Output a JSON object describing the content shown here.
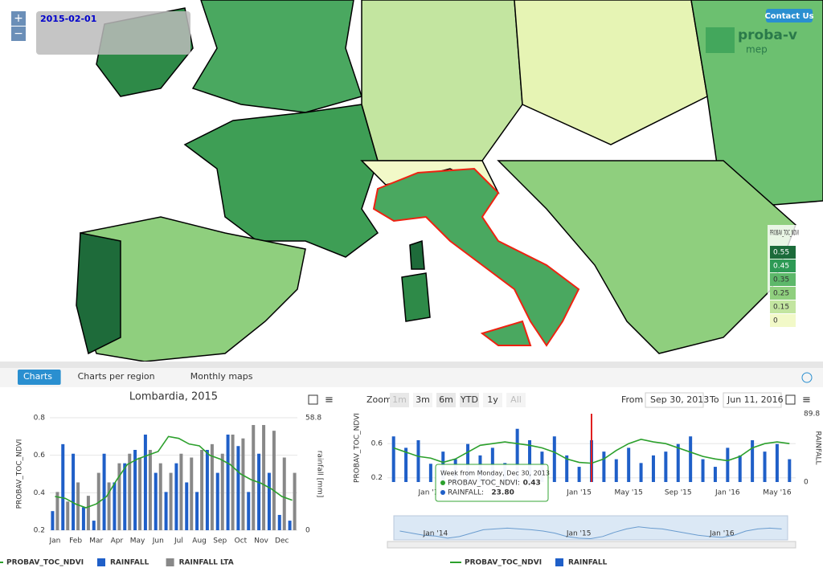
{
  "map": {
    "date": "2015-02-01",
    "zoom_in": "+",
    "zoom_out": "−",
    "contact": "Contact Us",
    "logo": "proba-v",
    "logo_sub": "mep",
    "legend": {
      "title": "PROBAV_TOC_NDVI",
      "values": [
        0.55,
        0.45,
        0.35,
        0.25,
        0.15,
        0
      ],
      "colors": [
        "#1b6b3a",
        "#2e9a55",
        "#5db86a",
        "#8fcf7e",
        "#c3e5a0",
        "#f2f9c8"
      ]
    }
  },
  "tabs": [
    "Charts",
    "Charts per region",
    "Monthly maps"
  ],
  "controls": {
    "zoom": "Zoom",
    "buttons": [
      "1m",
      "3m",
      "6m",
      "YTD",
      "1y",
      "All"
    ],
    "from": "From",
    "from_date": "Sep 30, 2013",
    "to": "To",
    "to_date": "Jun 11, 2016"
  },
  "tooltip": {
    "header": "Week from Monday, Dec 30, 2013",
    "names": [
      "PROBAV_TOC_NDVI:",
      "RAINFALL:"
    ],
    "values": [
      0.43,
      23.8
    ],
    "value_labels": [
      "0.43",
      "23.80"
    ]
  },
  "navigator_labels": [
    "Jan '14",
    "Jan '15",
    "Jan '16"
  ],
  "chart_data": [
    {
      "type": "combo",
      "title": "Lombardia, 2015",
      "y_label": "PROBAV_TOC_NDVI",
      "y2_label": "rainfall [mm]",
      "categories": [
        "Jan",
        null,
        "Feb",
        null,
        "Mar",
        null,
        "Apr",
        null,
        "May",
        null,
        "Jun",
        null,
        "Jul",
        null,
        "Aug",
        null,
        "Sep",
        null,
        "Oct",
        null,
        "Nov",
        null,
        "Dec",
        null
      ],
      "ylim": [
        0.2,
        0.8
      ],
      "yticks": [
        0.2,
        0.4,
        0.6,
        0.8
      ],
      "y2lim": [
        0,
        58.8
      ],
      "y2ticks": [
        0,
        58.8
      ],
      "series": [
        {
          "name": "PROBAV_TOC_NDVI",
          "type": "line",
          "color": "#2ca02c",
          "values": [
            0.38,
            0.37,
            0.34,
            0.32,
            0.34,
            0.38,
            0.47,
            0.55,
            0.58,
            0.6,
            0.62,
            0.7,
            0.69,
            0.66,
            0.65,
            0.6,
            0.58,
            0.55,
            0.5,
            0.47,
            0.45,
            0.42,
            0.38,
            0.36
          ]
        },
        {
          "name": "RAINFALL",
          "type": "bar",
          "axis": "y2",
          "color": "#1f5fc8",
          "values": [
            10,
            45,
            40,
            12,
            5,
            40,
            25,
            35,
            42,
            50,
            30,
            20,
            35,
            25,
            20,
            42,
            30,
            50,
            44,
            20,
            40,
            30,
            8,
            5
          ]
        },
        {
          "name": "RAINFALL LTA",
          "type": "bar",
          "axis": "y2",
          "color": "#888888",
          "values": [
            20,
            15,
            25,
            18,
            30,
            25,
            35,
            40,
            38,
            42,
            35,
            30,
            40,
            38,
            42,
            45,
            40,
            50,
            48,
            55,
            55,
            52,
            38,
            30
          ]
        }
      ]
    },
    {
      "type": "combo",
      "y_label": "PROBAV_TOC_NDVI",
      "y2_label": "RAINFALL",
      "categories": [
        null,
        null,
        null,
        "Jan '14",
        null,
        null,
        null,
        null,
        null,
        null,
        null,
        null,
        null,
        null,
        null,
        "Jan '15",
        null,
        null,
        null,
        "May '15",
        null,
        null,
        null,
        "Sep '15",
        null,
        null,
        null,
        "Jan '16",
        null,
        null,
        null,
        "May '16",
        null
      ],
      "ylim": [
        0.15,
        0.95
      ],
      "yticks": [
        0.2,
        0.6
      ],
      "y2lim": [
        0,
        89.8
      ],
      "y2ticks": [
        0,
        89.8
      ],
      "series": [
        {
          "name": "PROBAV_TOC_NDVI",
          "type": "line",
          "color": "#2ca02c",
          "values": [
            0.55,
            0.5,
            0.45,
            0.43,
            0.38,
            0.42,
            0.5,
            0.58,
            0.6,
            0.62,
            0.6,
            0.58,
            0.55,
            0.5,
            0.42,
            0.38,
            0.37,
            0.42,
            0.52,
            0.6,
            0.65,
            0.62,
            0.6,
            0.55,
            0.5,
            0.45,
            0.42,
            0.4,
            0.45,
            0.55,
            0.6,
            0.62,
            0.6
          ]
        },
        {
          "name": "RAINFALL",
          "type": "bar",
          "color": "#1f5fc8",
          "axis": "y2",
          "values": [
            60,
            45,
            55,
            24,
            40,
            30,
            50,
            35,
            45,
            25,
            70,
            55,
            40,
            60,
            35,
            20,
            55,
            40,
            30,
            45,
            25,
            35,
            40,
            50,
            60,
            30,
            20,
            45,
            35,
            55,
            40,
            50,
            30
          ]
        }
      ]
    }
  ]
}
